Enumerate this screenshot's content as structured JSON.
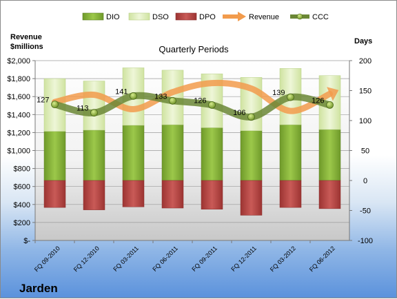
{
  "company": "Jarden",
  "chart_data": {
    "type": "bar",
    "title": "Quarterly Periods",
    "ylabel": "Revenue\n$millions",
    "y2label": "Days",
    "ylim": [
      0,
      2000
    ],
    "y2lim": [
      -100,
      200
    ],
    "yticks": [
      "$-",
      "$200",
      "$400",
      "$600",
      "$800",
      "$1,000",
      "$1,200",
      "$1,400",
      "$1,600",
      "$1,800",
      "$2,000"
    ],
    "y2ticks": [
      "-100",
      "-50",
      "0",
      "50",
      "100",
      "150",
      "200"
    ],
    "categories": [
      "FQ 09-2010",
      "FQ 12-2010",
      "FQ 03-2011",
      "FQ 06-2011",
      "FQ 09-2011",
      "FQ 12-2011",
      "FQ 03-2012",
      "FQ 06-2012"
    ],
    "legend_position": "top",
    "series": [
      {
        "name": "DIO",
        "axis": "days",
        "values": [
          82,
          84,
          92,
          93,
          88,
          83,
          93,
          85
        ],
        "color": "#8ab83c"
      },
      {
        "name": "DSO",
        "axis": "days",
        "values": [
          88,
          82,
          96,
          91,
          90,
          89,
          94,
          90
        ],
        "color": "#e3efc3"
      },
      {
        "name": "DPO",
        "axis": "days",
        "values": [
          -45,
          -49,
          -44,
          -46,
          -48,
          -58,
          -45,
          -47
        ],
        "color": "#c0504d"
      },
      {
        "name": "Revenue",
        "axis": "revenue",
        "values": [
          1540,
          1620,
          1460,
          1650,
          1750,
          1690,
          1440,
          1630
        ],
        "color": "#f29b4c"
      },
      {
        "name": "CCC",
        "axis": "days",
        "values": [
          127,
          113,
          141,
          133,
          126,
          106,
          139,
          126
        ],
        "color": "#6b8736"
      }
    ],
    "data_labels": [
      "127",
      "113",
      "141",
      "133",
      "126",
      "106",
      "139",
      "126"
    ]
  }
}
